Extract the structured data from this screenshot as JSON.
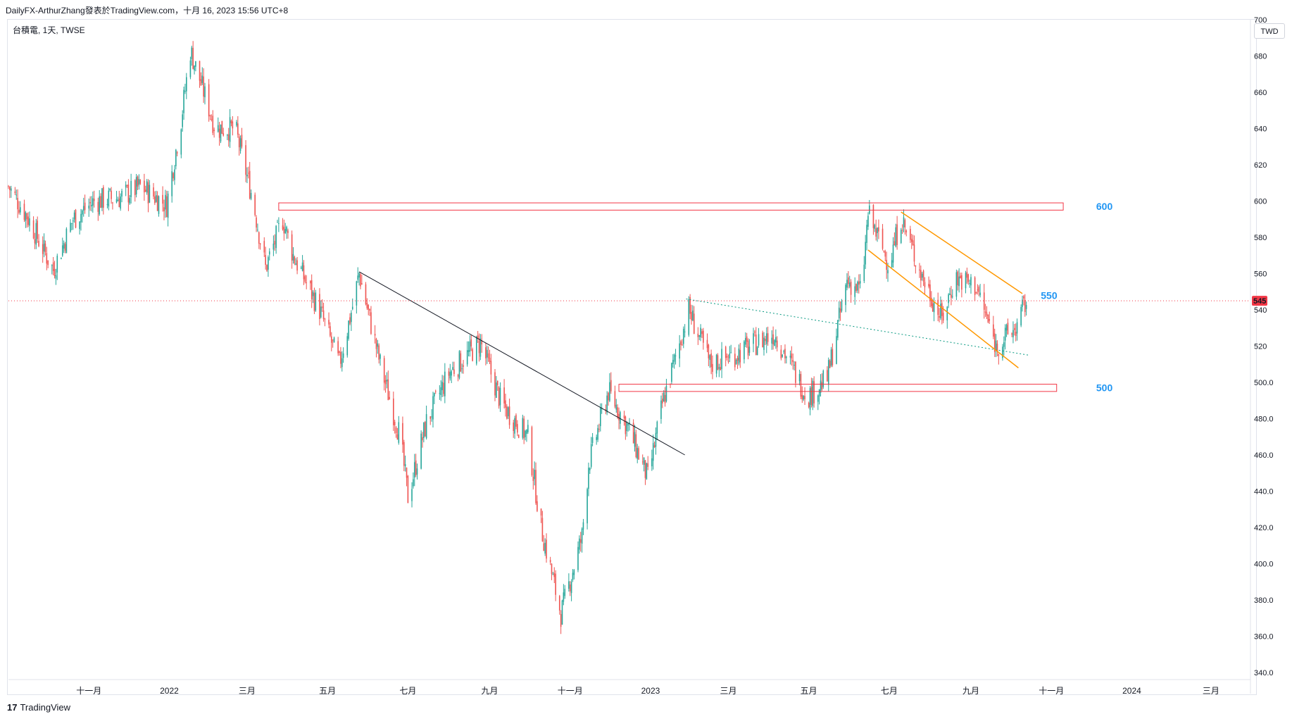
{
  "header": {
    "publisher_line": "DailyFX-ArthurZhang發表於TradingView.com，十月 16, 2023 15:56 UTC+8",
    "symbol_line": "台積電, 1天, TWSE",
    "currency": "TWD"
  },
  "brand": {
    "logo_mark": "17",
    "logo_text": "TradingView"
  },
  "colors": {
    "up": "#26a69a",
    "down": "#ef5350",
    "zone_border": "#f23645",
    "channel": "#ff9800",
    "trendline": "#131722",
    "support_dotted": "#089981",
    "level_label": "#2196f3",
    "price_line": "#f23645"
  },
  "chart_data": {
    "type": "candlestick",
    "title": "台積電, 1天, TWSE",
    "x_range": [
      "2021-09-01",
      "2024-03-31"
    ],
    "y_range": [
      340,
      700
    ],
    "y_ticks": [
      "700",
      "680",
      "660",
      "640",
      "620",
      "600",
      "580",
      "560",
      "540",
      "520",
      "500.0",
      "480.0",
      "460.0",
      "440.0",
      "420.0",
      "400.0",
      "380.0",
      "360.0",
      "340.0"
    ],
    "x_ticks": [
      {
        "label": "十一月",
        "date": "2021-11-01"
      },
      {
        "label": "2022",
        "date": "2022-01-01"
      },
      {
        "label": "三月",
        "date": "2022-03-01"
      },
      {
        "label": "五月",
        "date": "2022-05-01"
      },
      {
        "label": "七月",
        "date": "2022-07-01"
      },
      {
        "label": "九月",
        "date": "2022-09-01"
      },
      {
        "label": "十一月",
        "date": "2022-11-01"
      },
      {
        "label": "2023",
        "date": "2023-01-01"
      },
      {
        "label": "三月",
        "date": "2023-03-01"
      },
      {
        "label": "五月",
        "date": "2023-05-01"
      },
      {
        "label": "七月",
        "date": "2023-07-01"
      },
      {
        "label": "九月",
        "date": "2023-09-01"
      },
      {
        "label": "十一月",
        "date": "2023-11-01"
      },
      {
        "label": "2024",
        "date": "2024-01-01"
      },
      {
        "label": "三月",
        "date": "2024-03-01"
      }
    ],
    "close_path": [
      [
        "2021-09-01",
        608
      ],
      [
        "2021-09-15",
        592
      ],
      [
        "2021-10-05",
        562
      ],
      [
        "2021-10-20",
        590
      ],
      [
        "2021-11-05",
        600
      ],
      [
        "2021-11-25",
        602
      ],
      [
        "2021-12-10",
        608
      ],
      [
        "2021-12-30",
        598
      ],
      [
        "2022-01-10",
        645
      ],
      [
        "2022-01-17",
        683
      ],
      [
        "2022-02-05",
        640
      ],
      [
        "2022-02-20",
        640
      ],
      [
        "2022-03-05",
        602
      ],
      [
        "2022-03-15",
        563
      ],
      [
        "2022-03-28",
        590
      ],
      [
        "2022-04-05",
        570
      ],
      [
        "2022-04-25",
        540
      ],
      [
        "2022-05-10",
        510
      ],
      [
        "2022-05-20",
        542
      ],
      [
        "2022-05-25",
        560
      ],
      [
        "2022-06-10",
        510
      ],
      [
        "2022-06-25",
        470
      ],
      [
        "2022-07-01",
        437
      ],
      [
        "2022-07-15",
        478
      ],
      [
        "2022-08-01",
        505
      ],
      [
        "2022-08-25",
        522
      ],
      [
        "2022-09-10",
        488
      ],
      [
        "2022-09-30",
        470
      ],
      [
        "2022-10-10",
        420
      ],
      [
        "2022-10-25",
        372
      ],
      [
        "2022-11-10",
        415
      ],
      [
        "2022-11-15",
        455
      ],
      [
        "2022-11-30",
        495
      ],
      [
        "2022-12-15",
        475
      ],
      [
        "2022-12-30",
        447
      ],
      [
        "2023-01-10",
        488
      ],
      [
        "2023-01-30",
        540
      ],
      [
        "2023-02-15",
        510
      ],
      [
        "2023-03-05",
        515
      ],
      [
        "2023-04-05",
        527
      ],
      [
        "2023-04-30",
        492
      ],
      [
        "2023-05-15",
        502
      ],
      [
        "2023-05-30",
        556
      ],
      [
        "2023-06-10",
        550
      ],
      [
        "2023-06-15",
        593
      ],
      [
        "2023-07-01",
        565
      ],
      [
        "2023-07-10",
        591
      ],
      [
        "2023-07-25",
        560
      ],
      [
        "2023-08-10",
        535
      ],
      [
        "2023-08-20",
        558
      ],
      [
        "2023-09-05",
        553
      ],
      [
        "2023-09-20",
        520
      ],
      [
        "2023-10-05",
        530
      ],
      [
        "2023-10-13",
        545
      ]
    ],
    "last_price": "545",
    "levels": [
      {
        "label": "600",
        "value": 597
      },
      {
        "label": "550",
        "value": 548
      },
      {
        "label": "500",
        "value": 497
      }
    ],
    "resistance_zones": [
      {
        "from": "2022-03-25",
        "to": "2023-11-10",
        "low": 595,
        "high": 599
      },
      {
        "from": "2022-12-08",
        "to": "2023-11-05",
        "low": 495,
        "high": 499
      }
    ],
    "trendlines": [
      {
        "name": "downtrend",
        "from": [
          "2022-05-25",
          561
        ],
        "to": [
          "2023-01-27",
          460
        ],
        "style": "solid"
      },
      {
        "name": "support",
        "from": [
          "2023-01-28",
          546
        ],
        "to": [
          "2023-10-15",
          515
        ],
        "style": "dotted"
      },
      {
        "name": "channel-top",
        "from": [
          "2023-07-10",
          594
        ],
        "to": [
          "2023-10-10",
          549
        ],
        "style": "solid"
      },
      {
        "name": "channel-bottom",
        "from": [
          "2023-06-15",
          573
        ],
        "to": [
          "2023-10-07",
          508
        ],
        "style": "solid"
      }
    ]
  }
}
